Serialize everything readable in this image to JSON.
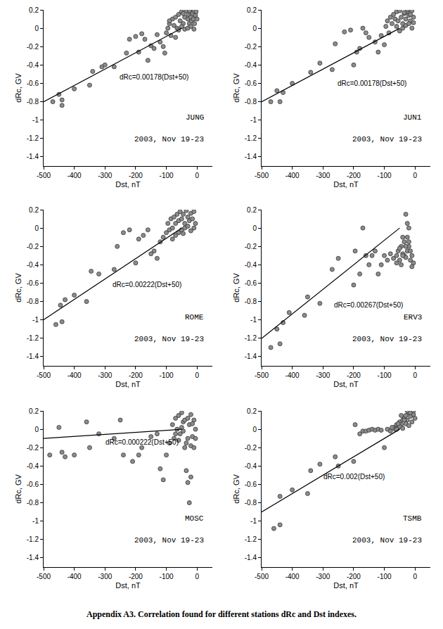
{
  "caption": "Appendix A3. Correlation found for different stations dRc and Dst indexes.",
  "chart_data": [
    {
      "type": "scatter",
      "x_label": "Dst, nT",
      "y_label": "dRc, GV",
      "xlim": [
        -500,
        50
      ],
      "ylim": [
        -1.5,
        0.2
      ],
      "xticks": [
        -500,
        -400,
        -300,
        -200,
        -100,
        0
      ],
      "yticks": [
        -1.4,
        -1.2,
        -1,
        -0.8,
        -0.6,
        -0.4,
        -0.2,
        0,
        0.2
      ],
      "grid": false,
      "annotations": [
        "dRc=0.00178(Dst+50)",
        "JUNG",
        "2003, Nov 19-23"
      ],
      "series": [
        {
          "type": "scatter",
          "color": "#8c8c8c",
          "marker": "circle",
          "x": [
            -470,
            -450,
            -440,
            -440,
            -400,
            -350,
            -340,
            -310,
            -300,
            -270,
            -230,
            -220,
            -200,
            -190,
            -180,
            -170,
            -160,
            -150,
            -140,
            -130,
            -120,
            -110,
            -105,
            -100,
            -95,
            -90,
            -85,
            -80,
            -75,
            -70,
            -65,
            -60,
            -55,
            -50,
            -45,
            -40,
            -35,
            -30,
            -28,
            -25,
            -22,
            -20,
            -18,
            -15,
            -12,
            -10,
            -8,
            -5,
            -3,
            0,
            -60,
            -70,
            -50,
            -40,
            -30,
            -20,
            -10,
            -90,
            -45,
            -25
          ],
          "values": [
            -0.8,
            -0.72,
            -0.78,
            -0.84,
            -0.66,
            -0.62,
            -0.47,
            -0.42,
            -0.4,
            -0.42,
            -0.27,
            -0.12,
            -0.09,
            -0.26,
            -0.06,
            -0.12,
            -0.35,
            -0.19,
            -0.22,
            -0.07,
            -0.15,
            -0.2,
            -0.27,
            -0.05,
            0,
            0.05,
            -0.08,
            0.1,
            0.03,
            0.12,
            0,
            0.15,
            0.08,
            0.18,
            0.05,
            0.12,
            0.19,
            0.1,
            0.15,
            0.05,
            0.18,
            0.12,
            0.08,
            0.16,
            0.1,
            0.19,
            0.05,
            0.14,
            0.18,
            0.1,
            -0.02,
            -0.1,
            0.02,
            -0.01,
            0,
            0.02,
            -0.01,
            0.08,
            0.16,
            0.19
          ]
        },
        {
          "type": "line",
          "color": "#000000",
          "line_style": "solid",
          "x": [
            -500,
            -50
          ],
          "values": [
            -0.801,
            0
          ]
        }
      ]
    },
    {
      "type": "scatter",
      "x_label": "Dst, nT",
      "y_label": "dRc, GV",
      "xlim": [
        -500,
        50
      ],
      "ylim": [
        -1.5,
        0.2
      ],
      "xticks": [
        -500,
        -400,
        -300,
        -200,
        -100,
        0
      ],
      "yticks": [
        -1.4,
        -1.2,
        -1,
        -0.8,
        -0.6,
        -0.4,
        -0.2,
        0,
        0.2
      ],
      "grid": false,
      "annotations": [
        "dRc=0.00178(Dst+50)",
        "JUN1",
        "2003, Nov 19-23"
      ],
      "series": [
        {
          "type": "scatter",
          "color": "#8c8c8c",
          "marker": "circle",
          "x": [
            -470,
            -450,
            -440,
            -430,
            -400,
            -340,
            -310,
            -270,
            -260,
            -230,
            -210,
            -200,
            -190,
            -180,
            -170,
            -160,
            -150,
            -130,
            -120,
            -110,
            -100,
            -95,
            -90,
            -85,
            -80,
            -75,
            -70,
            -65,
            -60,
            -55,
            -50,
            -45,
            -40,
            -35,
            -30,
            -25,
            -20,
            -15,
            -10,
            -5,
            -60,
            -50,
            -40,
            -30,
            -20,
            -10,
            -35,
            -25,
            -15,
            -5
          ],
          "values": [
            -0.8,
            -0.68,
            -0.8,
            -0.7,
            -0.6,
            -0.48,
            -0.38,
            -0.45,
            -0.17,
            -0.04,
            -0.02,
            -0.4,
            -0.26,
            -0.22,
            0,
            -0.05,
            -0.1,
            -0.15,
            -0.26,
            -0.08,
            -0.18,
            0.02,
            0.08,
            -0.05,
            0.12,
            0.05,
            0.15,
            0.1,
            0.18,
            0.08,
            0.19,
            0.12,
            0.05,
            0.16,
            0.1,
            0.18,
            0.14,
            0.08,
            0.19,
            0.12,
            0.02,
            -0.03,
            0,
            0.03,
            0.05,
            0,
            0.17,
            0.2,
            0.15,
            0.06
          ]
        },
        {
          "type": "line",
          "color": "#000000",
          "line_style": "solid",
          "x": [
            -500,
            -50
          ],
          "values": [
            -0.801,
            0
          ]
        }
      ]
    },
    {
      "type": "scatter",
      "x_label": "Dst, nT",
      "y_label": "dRc, GV",
      "xlim": [
        -500,
        50
      ],
      "ylim": [
        -1.5,
        0.2
      ],
      "xticks": [
        -500,
        -400,
        -300,
        -200,
        -100,
        0
      ],
      "yticks": [
        -1.4,
        -1.2,
        -1,
        -0.8,
        -0.6,
        -0.4,
        -0.2,
        0,
        0.2
      ],
      "grid": false,
      "annotations": [
        "dRc=0.00222(Dst+50)",
        "ROME",
        "2003, Nov 19-23"
      ],
      "series": [
        {
          "type": "scatter",
          "color": "#8c8c8c",
          "marker": "circle",
          "x": [
            -460,
            -445,
            -440,
            -430,
            -400,
            -360,
            -345,
            -320,
            -270,
            -260,
            -240,
            -220,
            -200,
            -190,
            -175,
            -160,
            -150,
            -140,
            -130,
            -120,
            -110,
            -100,
            -95,
            -90,
            -85,
            -80,
            -75,
            -70,
            -65,
            -60,
            -55,
            -50,
            -45,
            -40,
            -35,
            -30,
            -25,
            -20,
            -15,
            -10,
            -5,
            -60,
            -50,
            -40,
            -30,
            -20,
            -10,
            -80,
            -70,
            -45
          ],
          "values": [
            -1.05,
            -0.84,
            -1.02,
            -0.78,
            -0.73,
            -0.8,
            -0.47,
            -0.5,
            -0.45,
            -0.2,
            -0.05,
            -0.02,
            -0.38,
            -0.12,
            -0.08,
            -0.02,
            -0.28,
            -0.25,
            -0.33,
            -0.15,
            -0.1,
            -0.05,
            0.05,
            -0.02,
            0.1,
            0,
            0.12,
            0.05,
            0.15,
            0.08,
            0.18,
            0.1,
            0.15,
            0.05,
            0.19,
            0.12,
            0.08,
            0.16,
            0.1,
            0.18,
            0.05,
            -0.05,
            -0.02,
            0,
            0.02,
            -0.03,
            0,
            -0.12,
            -0.08,
            -0.06
          ]
        },
        {
          "type": "line",
          "color": "#000000",
          "line_style": "solid",
          "x": [
            -500,
            -50
          ],
          "values": [
            -0.999,
            0
          ]
        }
      ]
    },
    {
      "type": "scatter",
      "x_label": "Dst, nT",
      "y_label": "dRc, GV",
      "xlim": [
        -500,
        50
      ],
      "ylim": [
        -1.5,
        0.2
      ],
      "xticks": [
        -500,
        -400,
        -300,
        -200,
        -100,
        0
      ],
      "yticks": [
        -1.4,
        -1.2,
        -1,
        -0.8,
        -0.6,
        -0.4,
        -0.2,
        0,
        0.2
      ],
      "grid": false,
      "annotations": [
        "dRc=0.00267(Dst+50)",
        "ERV3",
        "2003, Nov 19-23"
      ],
      "series": [
        {
          "type": "scatter",
          "color": "#8c8c8c",
          "marker": "circle",
          "x": [
            -470,
            -450,
            -440,
            -430,
            -410,
            -360,
            -350,
            -310,
            -270,
            -250,
            -200,
            -195,
            -180,
            -170,
            -160,
            -150,
            -140,
            -130,
            -120,
            -110,
            -100,
            -90,
            -80,
            -70,
            -60,
            -55,
            -50,
            -45,
            -40,
            -35,
            -30,
            -25,
            -20,
            -40,
            -45,
            -50,
            -35,
            -30,
            -25,
            -20,
            -15,
            -10,
            -5,
            -15,
            -10,
            -30,
            -20,
            -60,
            -40,
            -25
          ],
          "values": [
            -1.3,
            -1.1,
            -1.26,
            -1.03,
            -0.92,
            -0.95,
            -0.75,
            -0.82,
            -0.45,
            -0.33,
            -0.62,
            -0.25,
            -0.5,
            0,
            -0.3,
            -0.4,
            -0.3,
            -0.25,
            -0.5,
            -0.4,
            -0.3,
            -0.35,
            -0.28,
            -0.33,
            -0.3,
            -0.25,
            -0.35,
            -0.2,
            -0.1,
            -0.3,
            0.15,
            0.05,
            0,
            -0.28,
            -0.4,
            -0.22,
            -0.15,
            -0.32,
            -0.25,
            -0.2,
            -0.35,
            -0.3,
            -0.38,
            -0.25,
            -0.42,
            -0.2,
            -0.15,
            -0.38,
            -0.3,
            -0.1
          ]
        },
        {
          "type": "line",
          "color": "#000000",
          "line_style": "solid",
          "x": [
            -500,
            -50
          ],
          "values": [
            -1.2015,
            0
          ]
        }
      ]
    },
    {
      "type": "scatter",
      "x_label": "Dst, nT",
      "y_label": "dRc, GV",
      "xlim": [
        -500,
        50
      ],
      "ylim": [
        -1.5,
        0.2
      ],
      "xticks": [
        -500,
        -400,
        -300,
        -200,
        -100,
        0
      ],
      "yticks": [
        -1.4,
        -1.2,
        -1,
        -0.8,
        -0.6,
        -0.4,
        -0.2,
        0,
        0.2
      ],
      "grid": false,
      "annotations": [
        "dRc=0.000222(Dst+50)",
        "MOSC",
        "2003, Nov 19-23"
      ],
      "series": [
        {
          "type": "scatter",
          "color": "#8c8c8c",
          "marker": "circle",
          "x": [
            -480,
            -450,
            -440,
            -430,
            -400,
            -360,
            -350,
            -320,
            -270,
            -250,
            -240,
            -210,
            -190,
            -180,
            -150,
            -130,
            -120,
            -110,
            -100,
            -90,
            -80,
            -75,
            -70,
            -65,
            -60,
            -55,
            -50,
            -45,
            -40,
            -35,
            -30,
            -25,
            -20,
            -15,
            -10,
            -5,
            -35,
            -30,
            -25,
            -20,
            -60,
            -50,
            -40,
            -30,
            -20,
            -10,
            -70,
            -45,
            -15,
            -5
          ],
          "values": [
            -0.28,
            0.02,
            -0.25,
            -0.3,
            -0.28,
            0.08,
            -0.2,
            -0.05,
            -0.1,
            0.1,
            -0.28,
            -0.35,
            -0.28,
            -0.2,
            -0.08,
            -0.05,
            -0.43,
            -0.55,
            -0.28,
            -0.15,
            0.05,
            -0.1,
            0.12,
            0,
            0.15,
            -0.05,
            0.18,
            0.08,
            0.1,
            -0.15,
            0.12,
            0.05,
            0.16,
            -0.08,
            0.1,
            0,
            -0.45,
            -0.58,
            -0.8,
            -0.52,
            -0.12,
            0.02,
            -0.2,
            -0.1,
            -0.18,
            -0.2,
            -0.05,
            -0.02,
            0.06,
            -0.1
          ]
        },
        {
          "type": "line",
          "color": "#000000",
          "line_style": "solid",
          "x": [
            -500,
            -50
          ],
          "values": [
            -0.0999,
            0
          ]
        }
      ]
    },
    {
      "type": "scatter",
      "x_label": "Dst, nT",
      "y_label": "dRc, GV",
      "xlim": [
        -500,
        50
      ],
      "ylim": [
        -1.5,
        0.2
      ],
      "xticks": [
        -500,
        -400,
        -300,
        -200,
        -100,
        0
      ],
      "yticks": [
        -1.4,
        -1.2,
        -1,
        -0.8,
        -0.6,
        -0.4,
        -0.2,
        0,
        0.2
      ],
      "grid": false,
      "annotations": [
        "dRc=0.002(Dst+50)",
        "TSMB",
        "2003, Nov 19-23"
      ],
      "series": [
        {
          "type": "scatter",
          "color": "#8c8c8c",
          "marker": "circle",
          "x": [
            -460,
            -440,
            -440,
            -400,
            -350,
            -340,
            -310,
            -260,
            -250,
            -200,
            -195,
            -180,
            -170,
            -160,
            -150,
            -140,
            -130,
            -120,
            -110,
            -100,
            -90,
            -80,
            -70,
            -65,
            -60,
            -55,
            -50,
            -45,
            -40,
            -35,
            -30,
            -25,
            -20,
            -15,
            -10,
            -5,
            0,
            -60,
            -50,
            -40,
            -30,
            -20,
            -10,
            -45,
            -25,
            -15,
            -35,
            -55,
            -5,
            -75
          ],
          "values": [
            -1.08,
            -1.04,
            -0.73,
            -0.66,
            -0.7,
            -0.45,
            -0.38,
            -0.3,
            -0.4,
            -0.35,
            0.05,
            -0.05,
            -0.02,
            -0.02,
            -0.01,
            0,
            -0.01,
            0,
            -0.01,
            -0.2,
            0,
            -0.02,
            0.02,
            0,
            0.05,
            0.02,
            0.08,
            0.05,
            0.1,
            0.12,
            0.15,
            0.1,
            0.18,
            0.14,
            0.19,
            0.16,
            0.12,
            0,
            0.03,
            0.01,
            0.06,
            0.04,
            0.08,
            0.15,
            0.2,
            0.18,
            0.1,
            0.06,
            0.2,
            0.02
          ]
        },
        {
          "type": "line",
          "color": "#000000",
          "line_style": "solid",
          "x": [
            -500,
            -50
          ],
          "values": [
            -0.9,
            0
          ]
        }
      ]
    }
  ]
}
